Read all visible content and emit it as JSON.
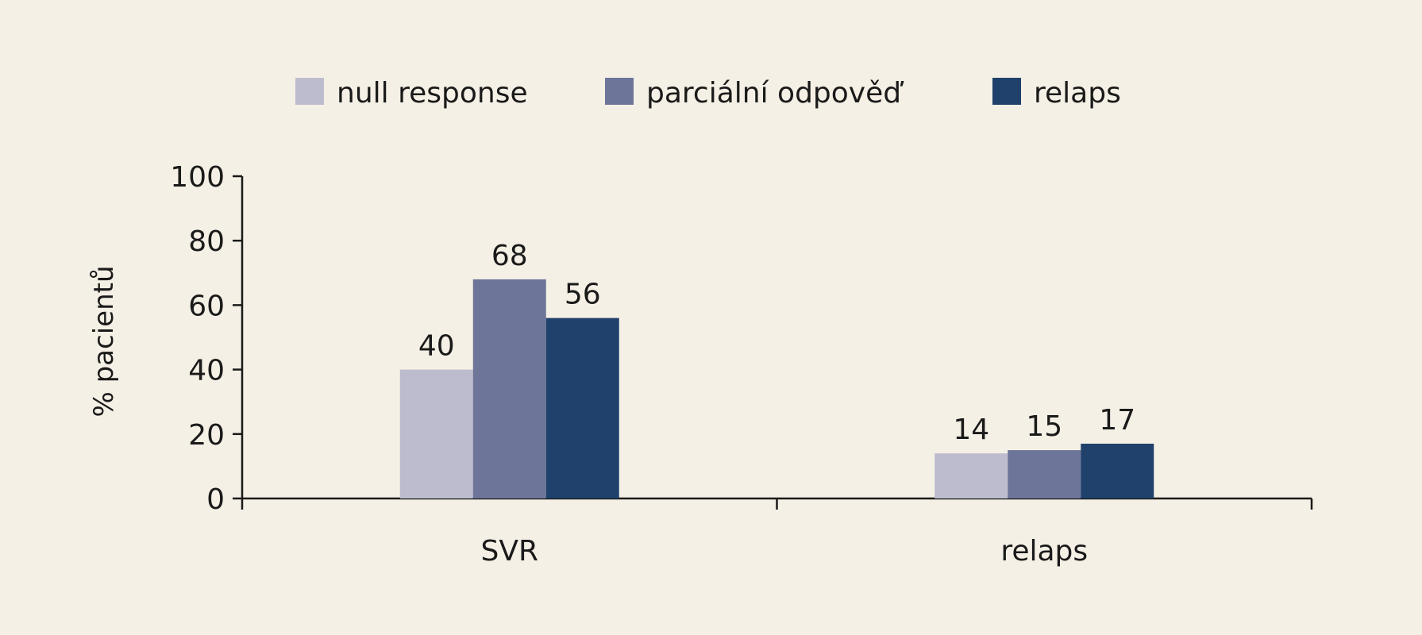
{
  "chart_data": {
    "type": "bar",
    "categories": [
      "SVR",
      "relaps"
    ],
    "series": [
      {
        "name": "null response",
        "color": "#bdbccf",
        "values": [
          40,
          14
        ]
      },
      {
        "name": "parciální odpověď",
        "color": "#6d7599",
        "values": [
          68,
          15
        ]
      },
      {
        "name": "relaps",
        "color": "#1f416b",
        "values": [
          56,
          17
        ]
      }
    ],
    "data_labels": [
      [
        "40",
        "14"
      ],
      [
        "68",
        "15"
      ],
      [
        "56",
        "17"
      ]
    ],
    "ylabel": "% pacientů",
    "xlabel": "",
    "ylim": [
      0,
      100
    ],
    "yticks": [
      0,
      20,
      40,
      60,
      80,
      100
    ],
    "grid": false,
    "legend_position": "top-center"
  }
}
